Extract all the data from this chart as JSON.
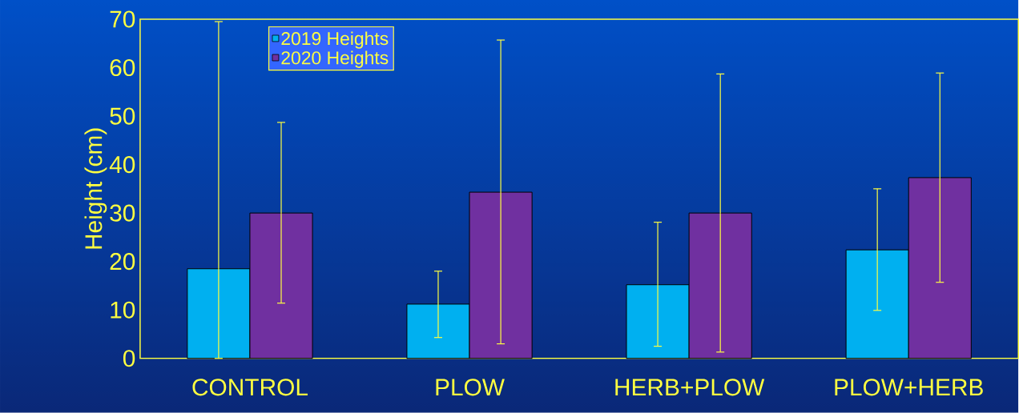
{
  "chart_data": {
    "type": "bar",
    "ylabel": "Height (cm)",
    "categories": [
      "CONTROL",
      "PLOW",
      "HERB+PLOW",
      "PLOW+HERB"
    ],
    "series": [
      {
        "name": "2019 Heights",
        "color": "#00b0f0",
        "values": [
          18.5,
          11.2,
          15.2,
          22.4
        ],
        "errors": [
          [
            0,
            69.5
          ],
          [
            4.3,
            18.0
          ],
          [
            2.5,
            28.1
          ],
          [
            9.9,
            35.0
          ]
        ]
      },
      {
        "name": "2020 Heights",
        "color": "#7030a0",
        "values": [
          30.0,
          34.3,
          30.0,
          37.3
        ],
        "errors": [
          [
            11.4,
            48.7
          ],
          [
            3.0,
            65.7
          ],
          [
            1.3,
            58.7
          ],
          [
            15.7,
            58.9
          ]
        ]
      }
    ],
    "ylim": [
      0,
      70
    ],
    "yticks": [
      0,
      10,
      20,
      30,
      40,
      50,
      60,
      70
    ],
    "legend": "top left",
    "grid": false
  }
}
